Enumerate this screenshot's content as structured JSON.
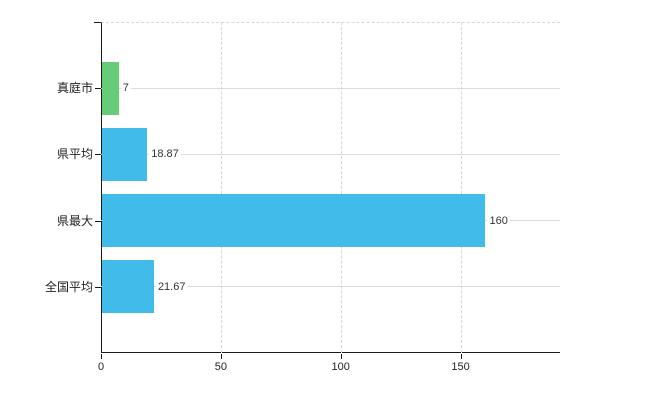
{
  "page": {
    "background": "#ffffff"
  },
  "chart_data": {
    "type": "bar",
    "orientation": "horizontal",
    "title": "",
    "xlabel": "",
    "ylabel": "",
    "legend": null,
    "grid": true,
    "categories": [
      "真庭市",
      "県平均",
      "県最大",
      "全国平均"
    ],
    "values": [
      7,
      18.87,
      160,
      21.67
    ],
    "value_labels": [
      "7",
      "18.87",
      "160",
      "21.67"
    ],
    "bar_colors": [
      "#67cb77",
      "#41bbea",
      "#41bbea",
      "#41bbea"
    ],
    "x_ticks": [
      0,
      50,
      100,
      150
    ],
    "x_tick_labels": [
      "0",
      "50",
      "100",
      "150"
    ],
    "xlim": [
      0,
      191.5
    ],
    "colors": {
      "axis": "#1a1a1a",
      "grid": "#d6dcd2",
      "text": "#2e2e2e",
      "green_bar": "#67cb77",
      "blue_bar": "#41bbea"
    }
  }
}
